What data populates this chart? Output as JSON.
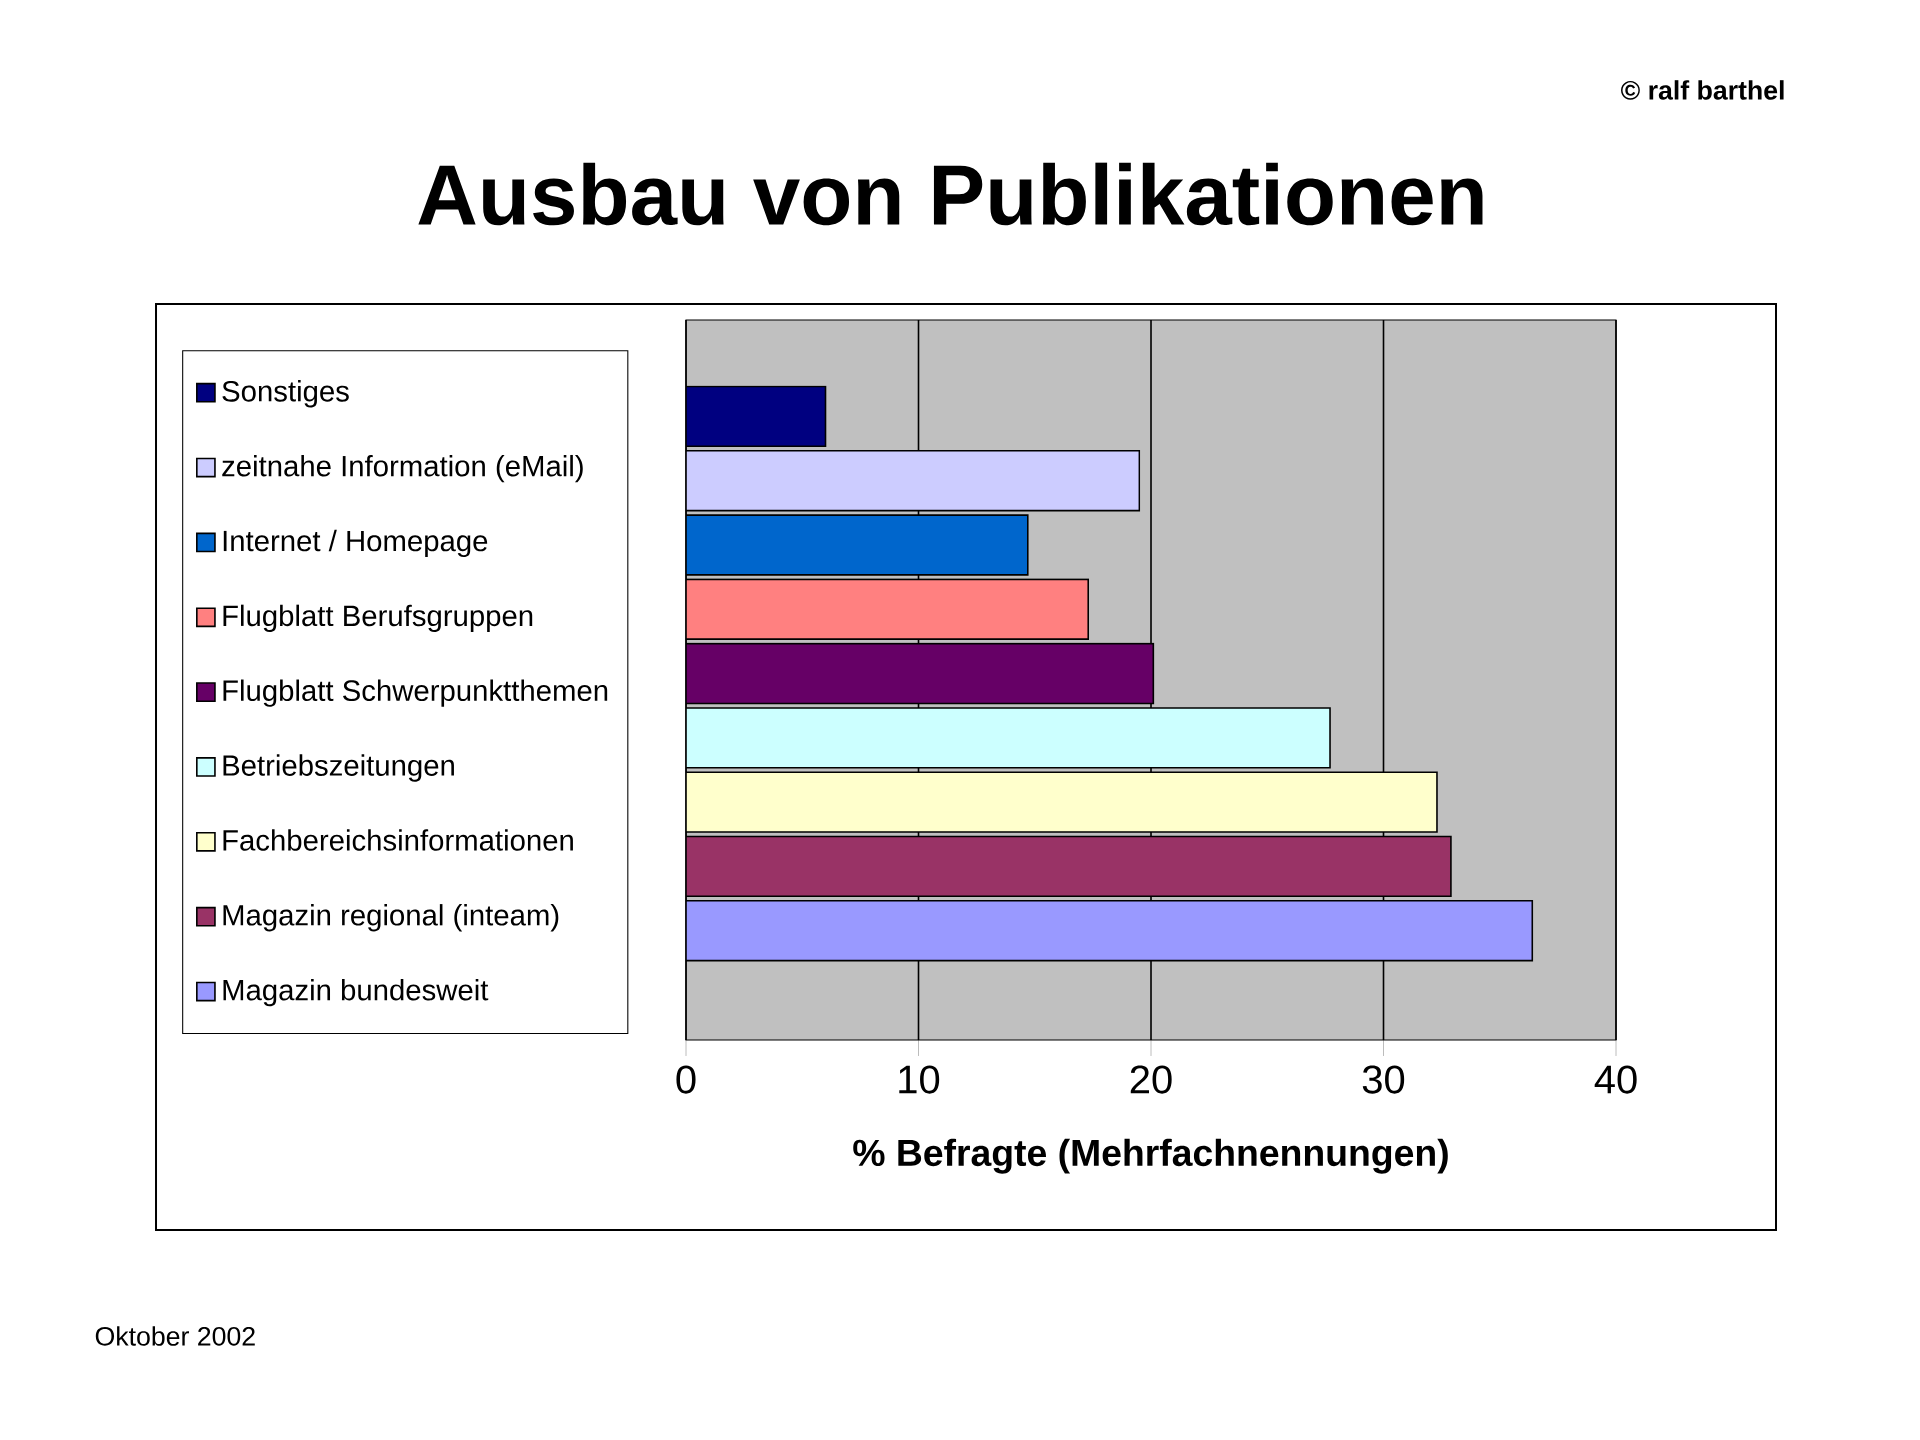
{
  "chart_data": {
    "type": "bar",
    "orientation": "horizontal",
    "title": "Ausbau von Publikationen",
    "xlabel": "% Befragte (Mehrfachnennungen)",
    "categories": [
      null
    ],
    "series": [
      {
        "name": "Sonstiges",
        "color": "#000080",
        "values": [
          6
        ]
      },
      {
        "name": "zeitnahe Information (eMail)",
        "color": "#ccccff",
        "values": [
          19.5
        ]
      },
      {
        "name": "Internet / Homepage",
        "color": "#0066cc",
        "values": [
          14.7
        ]
      },
      {
        "name": "Flugblatt Berufsgruppen",
        "color": "#ff8080",
        "values": [
          17.3
        ]
      },
      {
        "name": "Flugblatt Schwerpunktthemen",
        "color": "#660066",
        "values": [
          20.1
        ]
      },
      {
        "name": "Betriebszeitungen",
        "color": "#ccffff",
        "values": [
          27.7
        ]
      },
      {
        "name": "Fachbereichsinformationen",
        "color": "#ffffcc",
        "values": [
          32.3
        ]
      },
      {
        "name": "Magazin regional (inteam)",
        "color": "#993366",
        "values": [
          32.9
        ]
      },
      {
        "name": "Magazin bundesweit",
        "color": "#9999ff",
        "values": [
          36.4
        ]
      }
    ],
    "xlim": [
      0,
      40
    ],
    "xticks": [
      0,
      10,
      20,
      30,
      40
    ],
    "grid": "x",
    "legend": "left",
    "tick_labels": "x",
    "annotations": [
      "© ralf barthel",
      "Oktober 2002"
    ]
  }
}
